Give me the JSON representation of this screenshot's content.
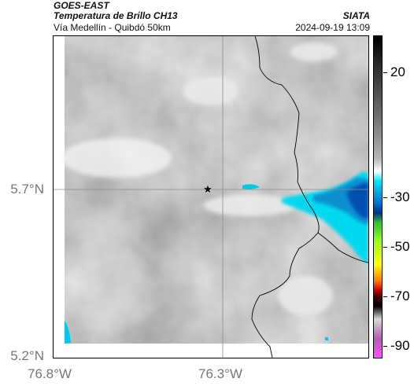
{
  "header": {
    "satellite": "GOES-EAST",
    "product": "Temperatura de Brillo CH13",
    "region": "Vía Medellín - Quibdó 50km",
    "org": "SIATA",
    "timestamp": "2024-09-19 13:09"
  },
  "map": {
    "lat_ticks": [
      "5.7°N",
      "5.2°N"
    ],
    "lon_ticks": [
      "76.8°W",
      "76.3°W"
    ],
    "marker": "star-marker",
    "colors": {
      "cloud_light": "#f2f2f2",
      "cloud_dark": "#5f5f5f",
      "cold_cyan": "#00d8f0",
      "cold_blue": "#0050b0",
      "coast_line": "#000000",
      "grid_line": "#8c8c8c"
    }
  },
  "colorbar": {
    "labels": [
      "20",
      "-30",
      "-50",
      "-70",
      "-90"
    ],
    "values": [
      20,
      -30,
      -50,
      -70,
      -90
    ],
    "range": [
      -95,
      35
    ]
  }
}
